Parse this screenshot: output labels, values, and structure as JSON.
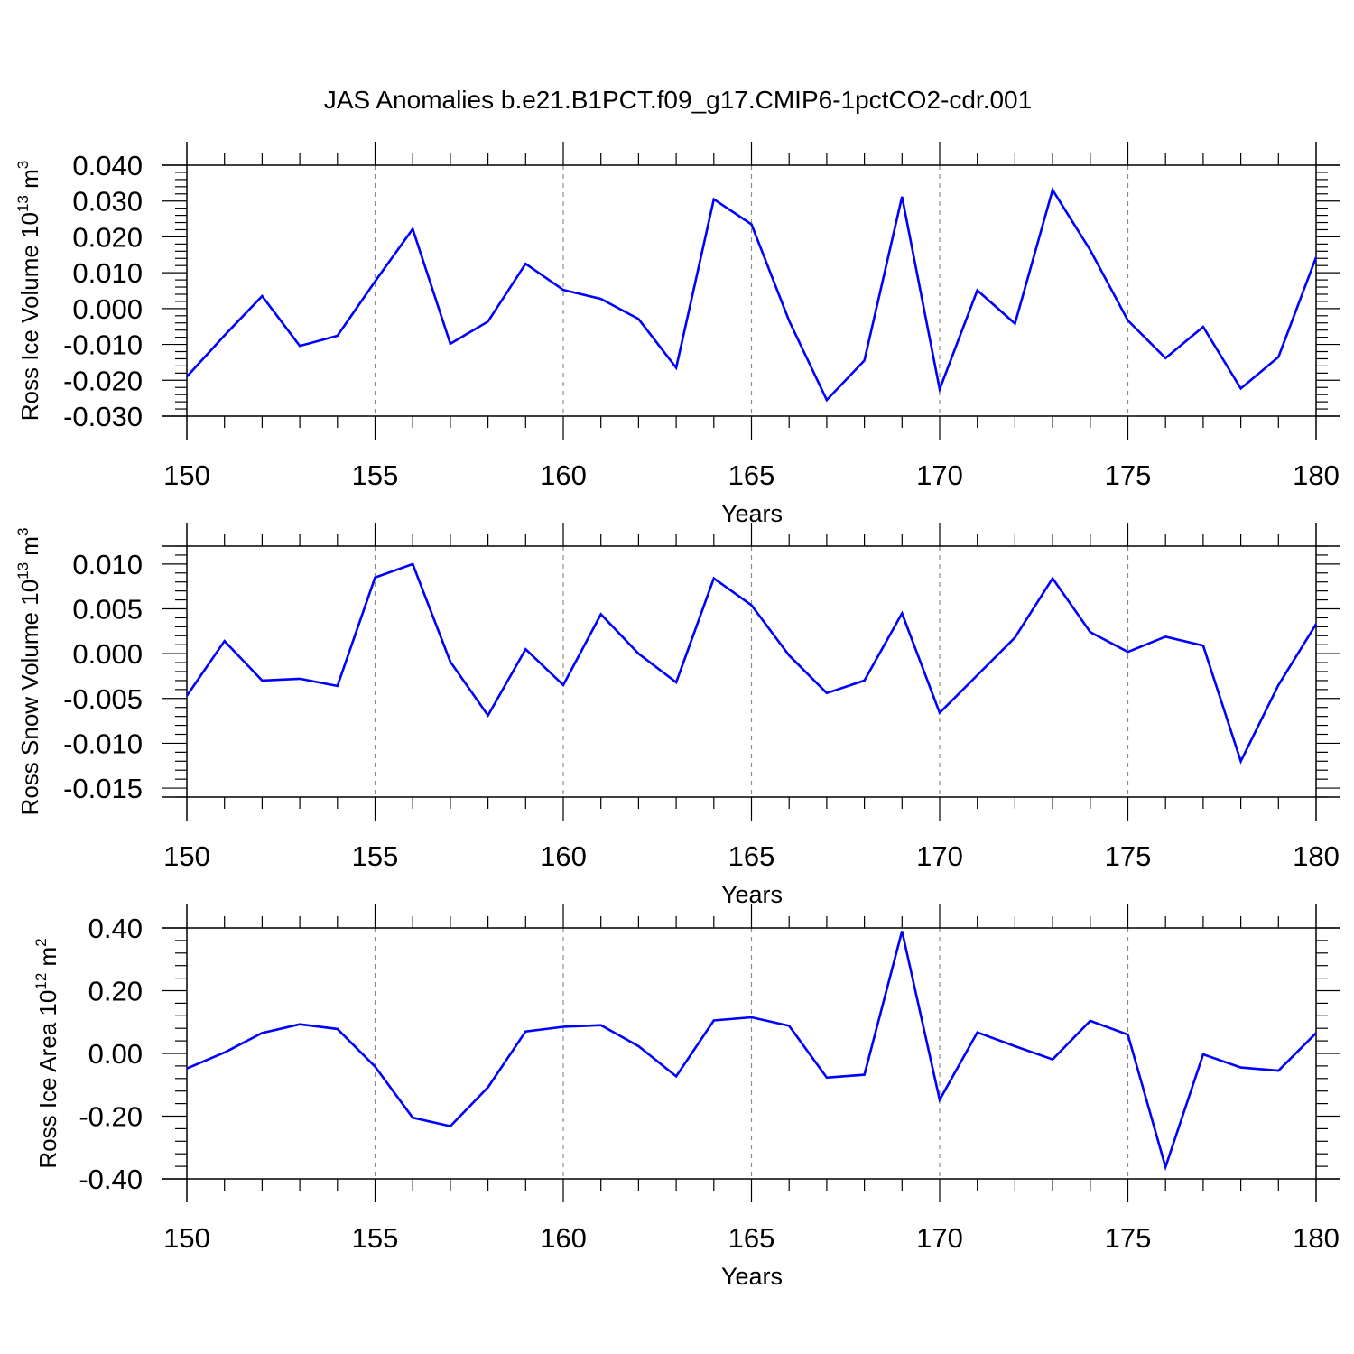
{
  "title": "JAS Anomalies b.e21.B1PCT.f09_g17.CMIP6-1pctCO2-cdr.001",
  "colors": {
    "line": "#0000ff",
    "axis": "#000000",
    "grid": "#8c8c8c"
  },
  "chart_data": [
    {
      "type": "line",
      "ylabel": {
        "main": "Ross Ice Volume 10",
        "exp": "13",
        "unit": "m",
        "unit_exp": "3"
      },
      "xlabel": "Years",
      "xlim": [
        150,
        180
      ],
      "ylim": [
        -0.03,
        0.04
      ],
      "xticks": [
        150,
        155,
        160,
        165,
        170,
        175,
        180
      ],
      "yticks": [
        "0.040",
        "0.030",
        "0.020",
        "0.010",
        "0.000",
        "-0.010",
        "-0.020",
        "-0.030"
      ],
      "grid": "vertical dashed at major x ticks",
      "series": [
        {
          "x": [
            150,
            151,
            152,
            153,
            154,
            155,
            156,
            157,
            158,
            159,
            160,
            161,
            162,
            163,
            164,
            165,
            166,
            167,
            168,
            169,
            170,
            171,
            172,
            173,
            174,
            175,
            176,
            177,
            178,
            179,
            180
          ],
          "values": [
            -0.019,
            -0.0075,
            0.0035,
            -0.0104,
            -0.0076,
            0.0076,
            0.0222,
            -0.0098,
            -0.0036,
            0.0125,
            0.0052,
            0.0027,
            -0.0029,
            -0.0165,
            0.0305,
            0.0235,
            -0.0034,
            -0.0255,
            -0.0145,
            0.0312,
            -0.0225,
            0.0051,
            -0.0042,
            0.0331,
            0.0163,
            -0.0033,
            -0.0138,
            -0.0051,
            -0.0223,
            -0.0135,
            0.0143
          ]
        }
      ]
    },
    {
      "type": "line",
      "ylabel": {
        "main": "Ross Snow Volume 10",
        "exp": "13",
        "unit": "m",
        "unit_exp": "3"
      },
      "xlabel": "Years",
      "xlim": [
        150,
        180
      ],
      "ylim": [
        -0.016,
        0.012
      ],
      "xticks": [
        150,
        155,
        160,
        165,
        170,
        175,
        180
      ],
      "yticks": [
        "0.010",
        "0.005",
        "0.000",
        "-0.005",
        "-0.010",
        "-0.015"
      ],
      "grid": "vertical dashed at major x ticks",
      "series": [
        {
          "x": [
            150,
            151,
            152,
            153,
            154,
            155,
            156,
            157,
            158,
            159,
            160,
            161,
            162,
            163,
            164,
            165,
            166,
            167,
            168,
            169,
            170,
            171,
            172,
            173,
            174,
            175,
            176,
            177,
            178,
            179,
            180
          ],
          "values": [
            -0.0047,
            0.0014,
            -0.003,
            -0.0028,
            -0.0036,
            0.0085,
            0.01,
            -0.0009,
            -0.0069,
            0.0005,
            -0.0035,
            0.0044,
            0.0,
            -0.0032,
            0.0084,
            0.0054,
            -0.0002,
            -0.0044,
            -0.003,
            0.0045,
            -0.0066,
            -0.0024,
            0.0018,
            0.0084,
            0.0024,
            0.0002,
            0.0019,
            0.0009,
            -0.012,
            -0.0035,
            0.0033
          ]
        }
      ]
    },
    {
      "type": "line",
      "ylabel": {
        "main": "Ross Ice Area 10",
        "exp": "12",
        "unit": "m",
        "unit_exp": "2"
      },
      "xlabel": "Years",
      "xlim": [
        150,
        180
      ],
      "ylim": [
        -0.4,
        0.4
      ],
      "xticks": [
        150,
        155,
        160,
        165,
        170,
        175,
        180
      ],
      "yticks": [
        "0.40",
        "0.20",
        "0.00",
        "-0.20",
        "-0.40"
      ],
      "grid": "vertical dashed at major x ticks",
      "series": [
        {
          "x": [
            150,
            151,
            152,
            153,
            154,
            155,
            156,
            157,
            158,
            159,
            160,
            161,
            162,
            163,
            164,
            165,
            166,
            167,
            168,
            169,
            170,
            171,
            172,
            173,
            174,
            175,
            176,
            177,
            178,
            179,
            180
          ],
          "values": [
            -0.048,
            0.003,
            0.065,
            0.093,
            0.078,
            -0.042,
            -0.205,
            -0.232,
            -0.108,
            0.07,
            0.085,
            0.09,
            0.023,
            -0.073,
            0.105,
            0.115,
            0.088,
            -0.077,
            -0.068,
            0.39,
            -0.148,
            0.067,
            0.023,
            -0.019,
            0.104,
            0.06,
            -0.362,
            -0.003,
            -0.045,
            -0.055,
            0.065
          ]
        }
      ]
    }
  ]
}
